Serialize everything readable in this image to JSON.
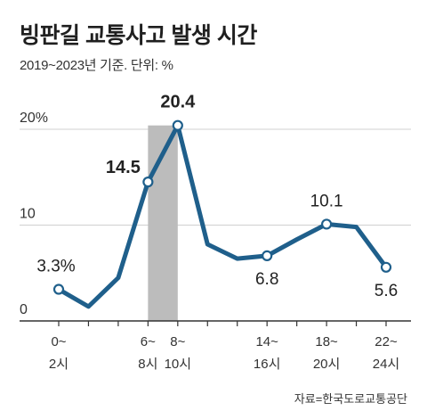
{
  "chart_data": {
    "type": "line",
    "title": "빙판길 교통사고 발생 시간",
    "subtitle": "2019~2023년 기준. 단위: %",
    "source": "자료=한국도로교통공단",
    "x": [
      1,
      3,
      5,
      7,
      9,
      11,
      13,
      15,
      17,
      19,
      21,
      23
    ],
    "values": [
      3.3,
      1.5,
      4.5,
      14.5,
      20.4,
      8.0,
      6.5,
      6.8,
      8.5,
      10.1,
      9.8,
      5.6
    ],
    "ylim": [
      0,
      22
    ],
    "yticks": [
      {
        "value": 0,
        "label": "0"
      },
      {
        "value": 10,
        "label": "10"
      },
      {
        "value": 20,
        "label": "20%"
      }
    ],
    "xticks": [
      {
        "x": 1,
        "line1": "0~",
        "line2": "2시"
      },
      {
        "x": 7,
        "line1": "6~",
        "line2": "8시"
      },
      {
        "x": 9,
        "line1": "8~",
        "line2": "10시"
      },
      {
        "x": 15,
        "line1": "14~",
        "line2": "16시"
      },
      {
        "x": 19,
        "line1": "18~",
        "line2": "20시"
      },
      {
        "x": 23,
        "line1": "22~",
        "line2": "24시"
      }
    ],
    "data_labels": [
      {
        "index": 0,
        "text": "3.3%",
        "bold": false
      },
      {
        "index": 3,
        "text": "14.5",
        "bold": true
      },
      {
        "index": 4,
        "text": "20.4",
        "bold": true
      },
      {
        "index": 7,
        "text": "6.8",
        "bold": false
      },
      {
        "index": 9,
        "text": "10.1",
        "bold": false
      },
      {
        "index": 11,
        "text": "5.6",
        "bold": false
      }
    ],
    "highlight_range": [
      7,
      9
    ],
    "grid": true,
    "colors": {
      "line": "#1f5f8b",
      "highlight": "#bcbcbc",
      "grid": "#d0d0d0",
      "axis": "#333333"
    }
  }
}
